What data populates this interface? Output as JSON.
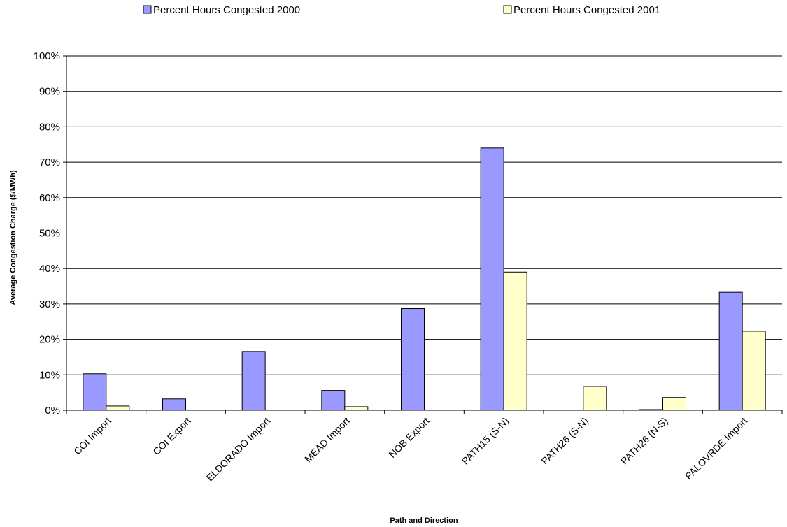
{
  "chart_data": {
    "type": "bar",
    "categories": [
      "COI Import",
      "COI Export",
      "ELDORADO Import",
      "MEAD Import",
      "NOB Export",
      "PATH15 (S-N)",
      "PATH26 (S-N)",
      "PATH26 (N-S)",
      "PALOVRDE Import"
    ],
    "series": [
      {
        "name": "Percent Hours Congested 2000",
        "color": "#9999ff",
        "values": [
          10.3,
          3.2,
          16.6,
          5.6,
          28.7,
          74.0,
          0,
          0.2,
          33.3
        ]
      },
      {
        "name": "Percent Hours Congested 2001",
        "color": "#ffffcc",
        "values": [
          1.2,
          0,
          0,
          1.0,
          0,
          39.0,
          6.7,
          3.6,
          22.3
        ]
      }
    ],
    "xlabel": "Path and Direction",
    "ylabel": "Average Congestion Charge ($/MWh)",
    "ylim": [
      0,
      100
    ],
    "yticks": [
      "0%",
      "10%",
      "20%",
      "30%",
      "40%",
      "50%",
      "60%",
      "70%",
      "80%",
      "90%",
      "100%"
    ],
    "grid": "horizontal",
    "legend_position": "top"
  }
}
